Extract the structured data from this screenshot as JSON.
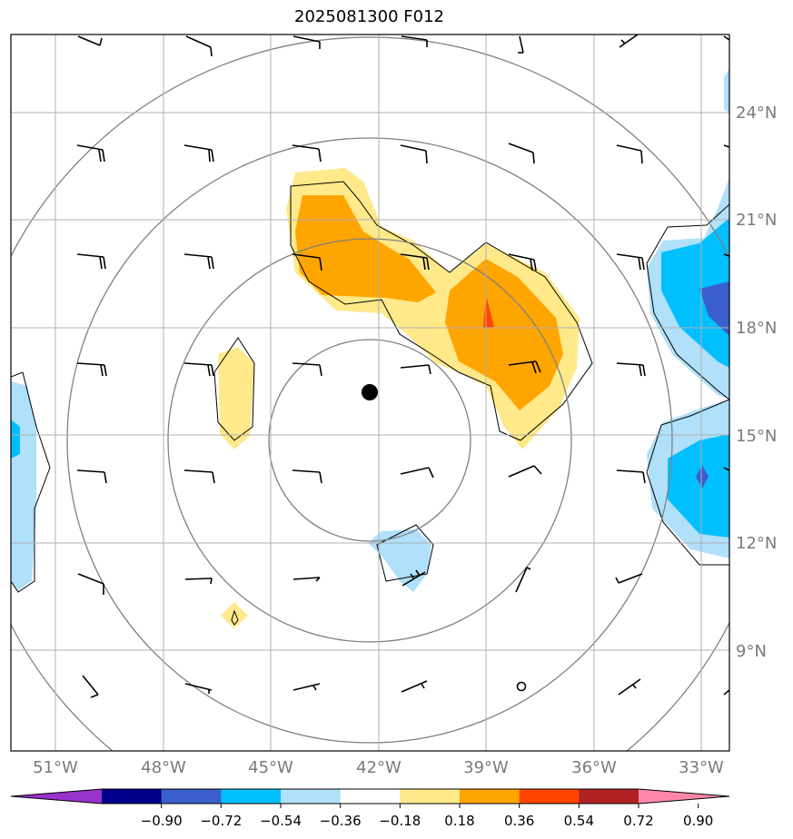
{
  "title": "2025081300 F012",
  "map": {
    "lat_labels": [
      "24°N",
      "21°N",
      "18°N",
      "15°N",
      "12°N",
      "9°N"
    ],
    "lon_labels": [
      "51°W",
      "48°W",
      "45°W",
      "42°W",
      "39°W",
      "36°W",
      "33°W"
    ],
    "gridline_color": "#b0b0b0",
    "range_ring_color": "#808080",
    "center_marker": "filled-black-dot"
  },
  "colorbar": {
    "levels": [
      "−0.90",
      "−0.72",
      "−0.54",
      "−0.36",
      "−0.18",
      "0.18",
      "0.36",
      "0.54",
      "0.72",
      "0.90"
    ],
    "colors": [
      "#9932cc",
      "#00008b",
      "#3a5fcd",
      "#00bfff",
      "#b0e0fa",
      "#ffffff",
      "#ffe98a",
      "#ffa500",
      "#ff4500",
      "#b22222",
      "#ff88aa"
    ],
    "extend": "both"
  }
}
